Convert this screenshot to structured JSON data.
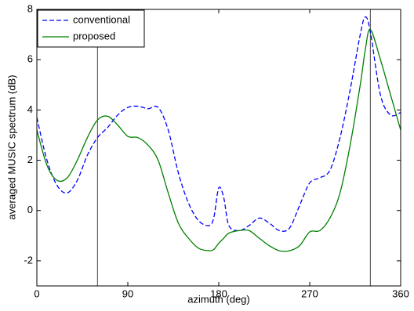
{
  "chart_data": {
    "type": "line",
    "xlabel": "azimuth (deg)",
    "ylabel": "averaged MUSIC spectrum (dB)",
    "x": [
      0,
      10,
      20,
      30,
      40,
      50,
      60,
      70,
      80,
      90,
      100,
      110,
      120,
      130,
      140,
      150,
      160,
      170,
      175,
      180,
      185,
      190,
      200,
      210,
      220,
      230,
      240,
      250,
      260,
      270,
      280,
      290,
      300,
      310,
      320,
      325,
      330,
      340,
      350,
      360
    ],
    "series": [
      {
        "name": "conventional",
        "color": "#0000ff",
        "dash": "dashed",
        "values": [
          3.7,
          2.0,
          1.0,
          0.7,
          1.2,
          2.2,
          2.9,
          3.3,
          3.8,
          4.1,
          4.15,
          4.05,
          4.1,
          3.2,
          1.5,
          0.3,
          -0.4,
          -0.6,
          -0.3,
          0.9,
          0.5,
          -0.6,
          -0.8,
          -0.6,
          -0.3,
          -0.5,
          -0.8,
          -0.7,
          0.2,
          1.1,
          1.3,
          1.6,
          2.9,
          4.8,
          7.0,
          7.7,
          7.1,
          4.6,
          3.8,
          3.9
        ]
      },
      {
        "name": "proposed",
        "color": "#008000",
        "dash": "solid",
        "values": [
          3.2,
          1.8,
          1.2,
          1.3,
          2.0,
          2.9,
          3.6,
          3.75,
          3.4,
          2.95,
          2.9,
          2.6,
          2.0,
          0.7,
          -0.5,
          -1.1,
          -1.5,
          -1.6,
          -1.55,
          -1.3,
          -1.1,
          -0.9,
          -0.8,
          -0.8,
          -1.1,
          -1.4,
          -1.6,
          -1.6,
          -1.4,
          -0.85,
          -0.8,
          -0.3,
          0.7,
          2.6,
          5.0,
          6.4,
          7.2,
          6.0,
          4.6,
          3.2
        ]
      }
    ],
    "vlines": [
      60,
      330
    ],
    "vline_color": "#444444",
    "xlim": [
      0,
      360
    ],
    "xticks": [
      0,
      90,
      180,
      270,
      360
    ],
    "ylim": [
      -3,
      8
    ],
    "yticks": [
      -2,
      0,
      2,
      4,
      6,
      8
    ],
    "legend": "upper left",
    "grid": false
  }
}
